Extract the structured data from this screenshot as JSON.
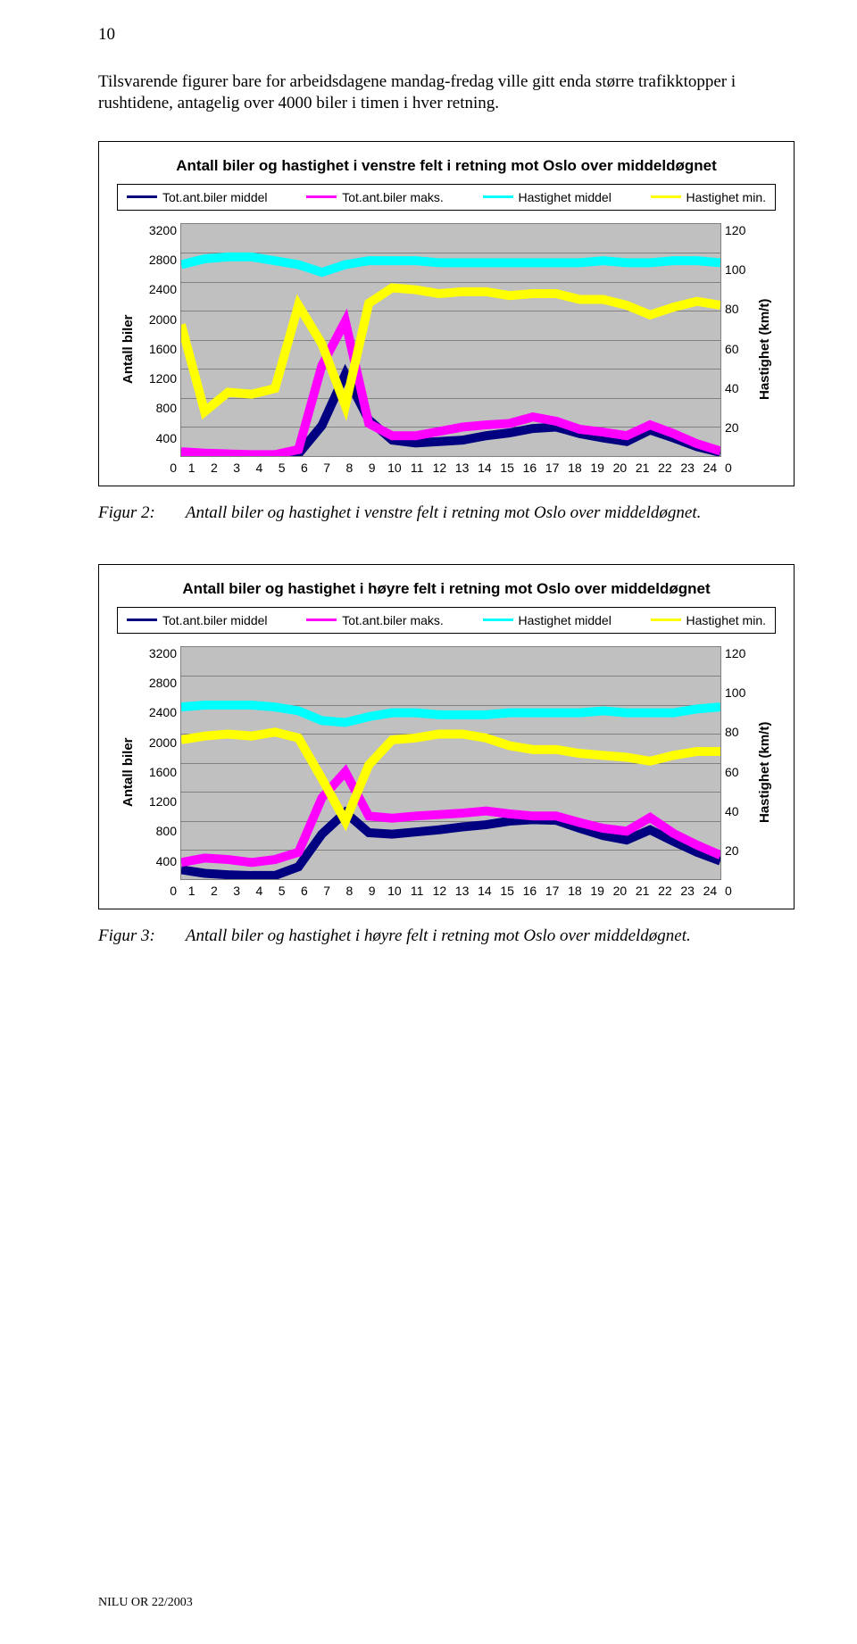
{
  "pageNumber": "10",
  "intro": "Tilsvarende figurer bare for arbeidsdagene mandag-fredag ville gitt enda større trafikktopper i rushtidene, antagelig over 4000 biler i timen i hver retning.",
  "footer": "NILU OR 22/2003",
  "charts": [
    {
      "title": "Antall biler og hastighet i venstre felt i retning mot Oslo over middeldøgnet",
      "legend": [
        {
          "label": "Tot.ant.biler middel",
          "color": "#000080"
        },
        {
          "label": "Tot.ant.biler maks.",
          "color": "#ff00ff"
        },
        {
          "label": "Hastighet middel",
          "color": "#00ffff"
        },
        {
          "label": "Hastighet min.",
          "color": "#ffff00"
        }
      ],
      "yLeft": {
        "label": "Antall biler",
        "min": 0,
        "max": 3200,
        "step": 400,
        "ticks": [
          "3200",
          "2800",
          "2400",
          "2000",
          "1600",
          "1200",
          "800",
          "400",
          "0"
        ]
      },
      "yRight": {
        "label": "Hastighet (km/t)",
        "min": 0,
        "max": 120,
        "step": 20,
        "ticks": [
          "120",
          "100",
          "80",
          "60",
          "40",
          "20",
          "0"
        ]
      },
      "xTicks": [
        "1",
        "2",
        "3",
        "4",
        "5",
        "6",
        "7",
        "8",
        "9",
        "10",
        "11",
        "12",
        "13",
        "14",
        "15",
        "16",
        "17",
        "18",
        "19",
        "20",
        "21",
        "22",
        "23",
        "24"
      ],
      "plot": {
        "bg": "#c0c0c0",
        "grid": "#808080",
        "lineWidth": 2.5
      },
      "series": [
        {
          "color": "#000080",
          "axis": "left",
          "values": [
            40,
            20,
            15,
            10,
            10,
            30,
            420,
            1130,
            500,
            220,
            180,
            200,
            220,
            280,
            320,
            380,
            400,
            310,
            250,
            200,
            360,
            250,
            130,
            50
          ]
        },
        {
          "color": "#ff00ff",
          "axis": "left",
          "values": [
            60,
            40,
            30,
            20,
            20,
            90,
            1250,
            1860,
            450,
            280,
            280,
            340,
            400,
            430,
            450,
            540,
            480,
            370,
            330,
            280,
            430,
            310,
            170,
            70
          ]
        },
        {
          "color": "#00ffff",
          "axis": "right",
          "values": [
            99,
            102,
            103,
            103,
            101,
            99,
            95,
            99,
            101,
            101,
            101,
            100,
            100,
            100,
            100,
            100,
            100,
            100,
            101,
            100,
            100,
            101,
            101,
            100
          ]
        },
        {
          "color": "#ffff00",
          "axis": "right",
          "values": [
            68,
            23,
            33,
            32,
            35,
            78,
            58,
            26,
            79,
            87,
            86,
            84,
            85,
            85,
            83,
            84,
            84,
            81,
            81,
            78,
            73,
            77,
            80,
            78
          ]
        }
      ]
    },
    {
      "title": "Antall biler og hastighet i høyre felt i retning mot Oslo over middeldøgnet",
      "legend": [
        {
          "label": "Tot.ant.biler middel",
          "color": "#000080"
        },
        {
          "label": "Tot.ant.biler maks.",
          "color": "#ff00ff"
        },
        {
          "label": "Hastighet middel",
          "color": "#00ffff"
        },
        {
          "label": "Hastighet min.",
          "color": "#ffff00"
        }
      ],
      "yLeft": {
        "label": "Antall biler",
        "min": 0,
        "max": 3200,
        "step": 400,
        "ticks": [
          "3200",
          "2800",
          "2400",
          "2000",
          "1600",
          "1200",
          "800",
          "400",
          "0"
        ]
      },
      "yRight": {
        "label": "Hastighet (km/t)",
        "min": 0,
        "max": 120,
        "step": 20,
        "ticks": [
          "120",
          "100",
          "80",
          "60",
          "40",
          "20",
          "0"
        ]
      },
      "xTicks": [
        "1",
        "2",
        "3",
        "4",
        "5",
        "6",
        "7",
        "8",
        "9",
        "10",
        "11",
        "12",
        "13",
        "14",
        "15",
        "16",
        "17",
        "18",
        "19",
        "20",
        "21",
        "22",
        "23",
        "24"
      ],
      "plot": {
        "bg": "#c0c0c0",
        "grid": "#808080",
        "lineWidth": 2.5
      },
      "series": [
        {
          "color": "#000080",
          "axis": "left",
          "values": [
            130,
            80,
            60,
            50,
            50,
            170,
            620,
            920,
            640,
            620,
            650,
            680,
            720,
            750,
            800,
            820,
            810,
            700,
            600,
            540,
            680,
            520,
            370,
            250
          ]
        },
        {
          "color": "#ff00ff",
          "axis": "left",
          "values": [
            230,
            290,
            270,
            230,
            270,
            370,
            1120,
            1480,
            870,
            840,
            870,
            890,
            910,
            940,
            900,
            870,
            870,
            780,
            700,
            660,
            850,
            630,
            470,
            330
          ]
        },
        {
          "color": "#00ffff",
          "axis": "right",
          "values": [
            89,
            90,
            90,
            90,
            89,
            87,
            82,
            81,
            84,
            86,
            86,
            85,
            85,
            85,
            86,
            86,
            86,
            86,
            87,
            86,
            86,
            86,
            88,
            89
          ]
        },
        {
          "color": "#ffff00",
          "axis": "right",
          "values": [
            72,
            74,
            75,
            74,
            76,
            73,
            52,
            30,
            59,
            72,
            73,
            75,
            75,
            73,
            69,
            67,
            67,
            65,
            64,
            63,
            61,
            64,
            66,
            66
          ]
        }
      ]
    }
  ],
  "captions": [
    {
      "label": "Figur 2:",
      "text": "Antall biler og hastighet i venstre felt i retning mot Oslo over middeldøgnet."
    },
    {
      "label": "Figur 3:",
      "text": "Antall biler og hastighet i høyre felt i retning mot Oslo over middeldøgnet."
    }
  ]
}
